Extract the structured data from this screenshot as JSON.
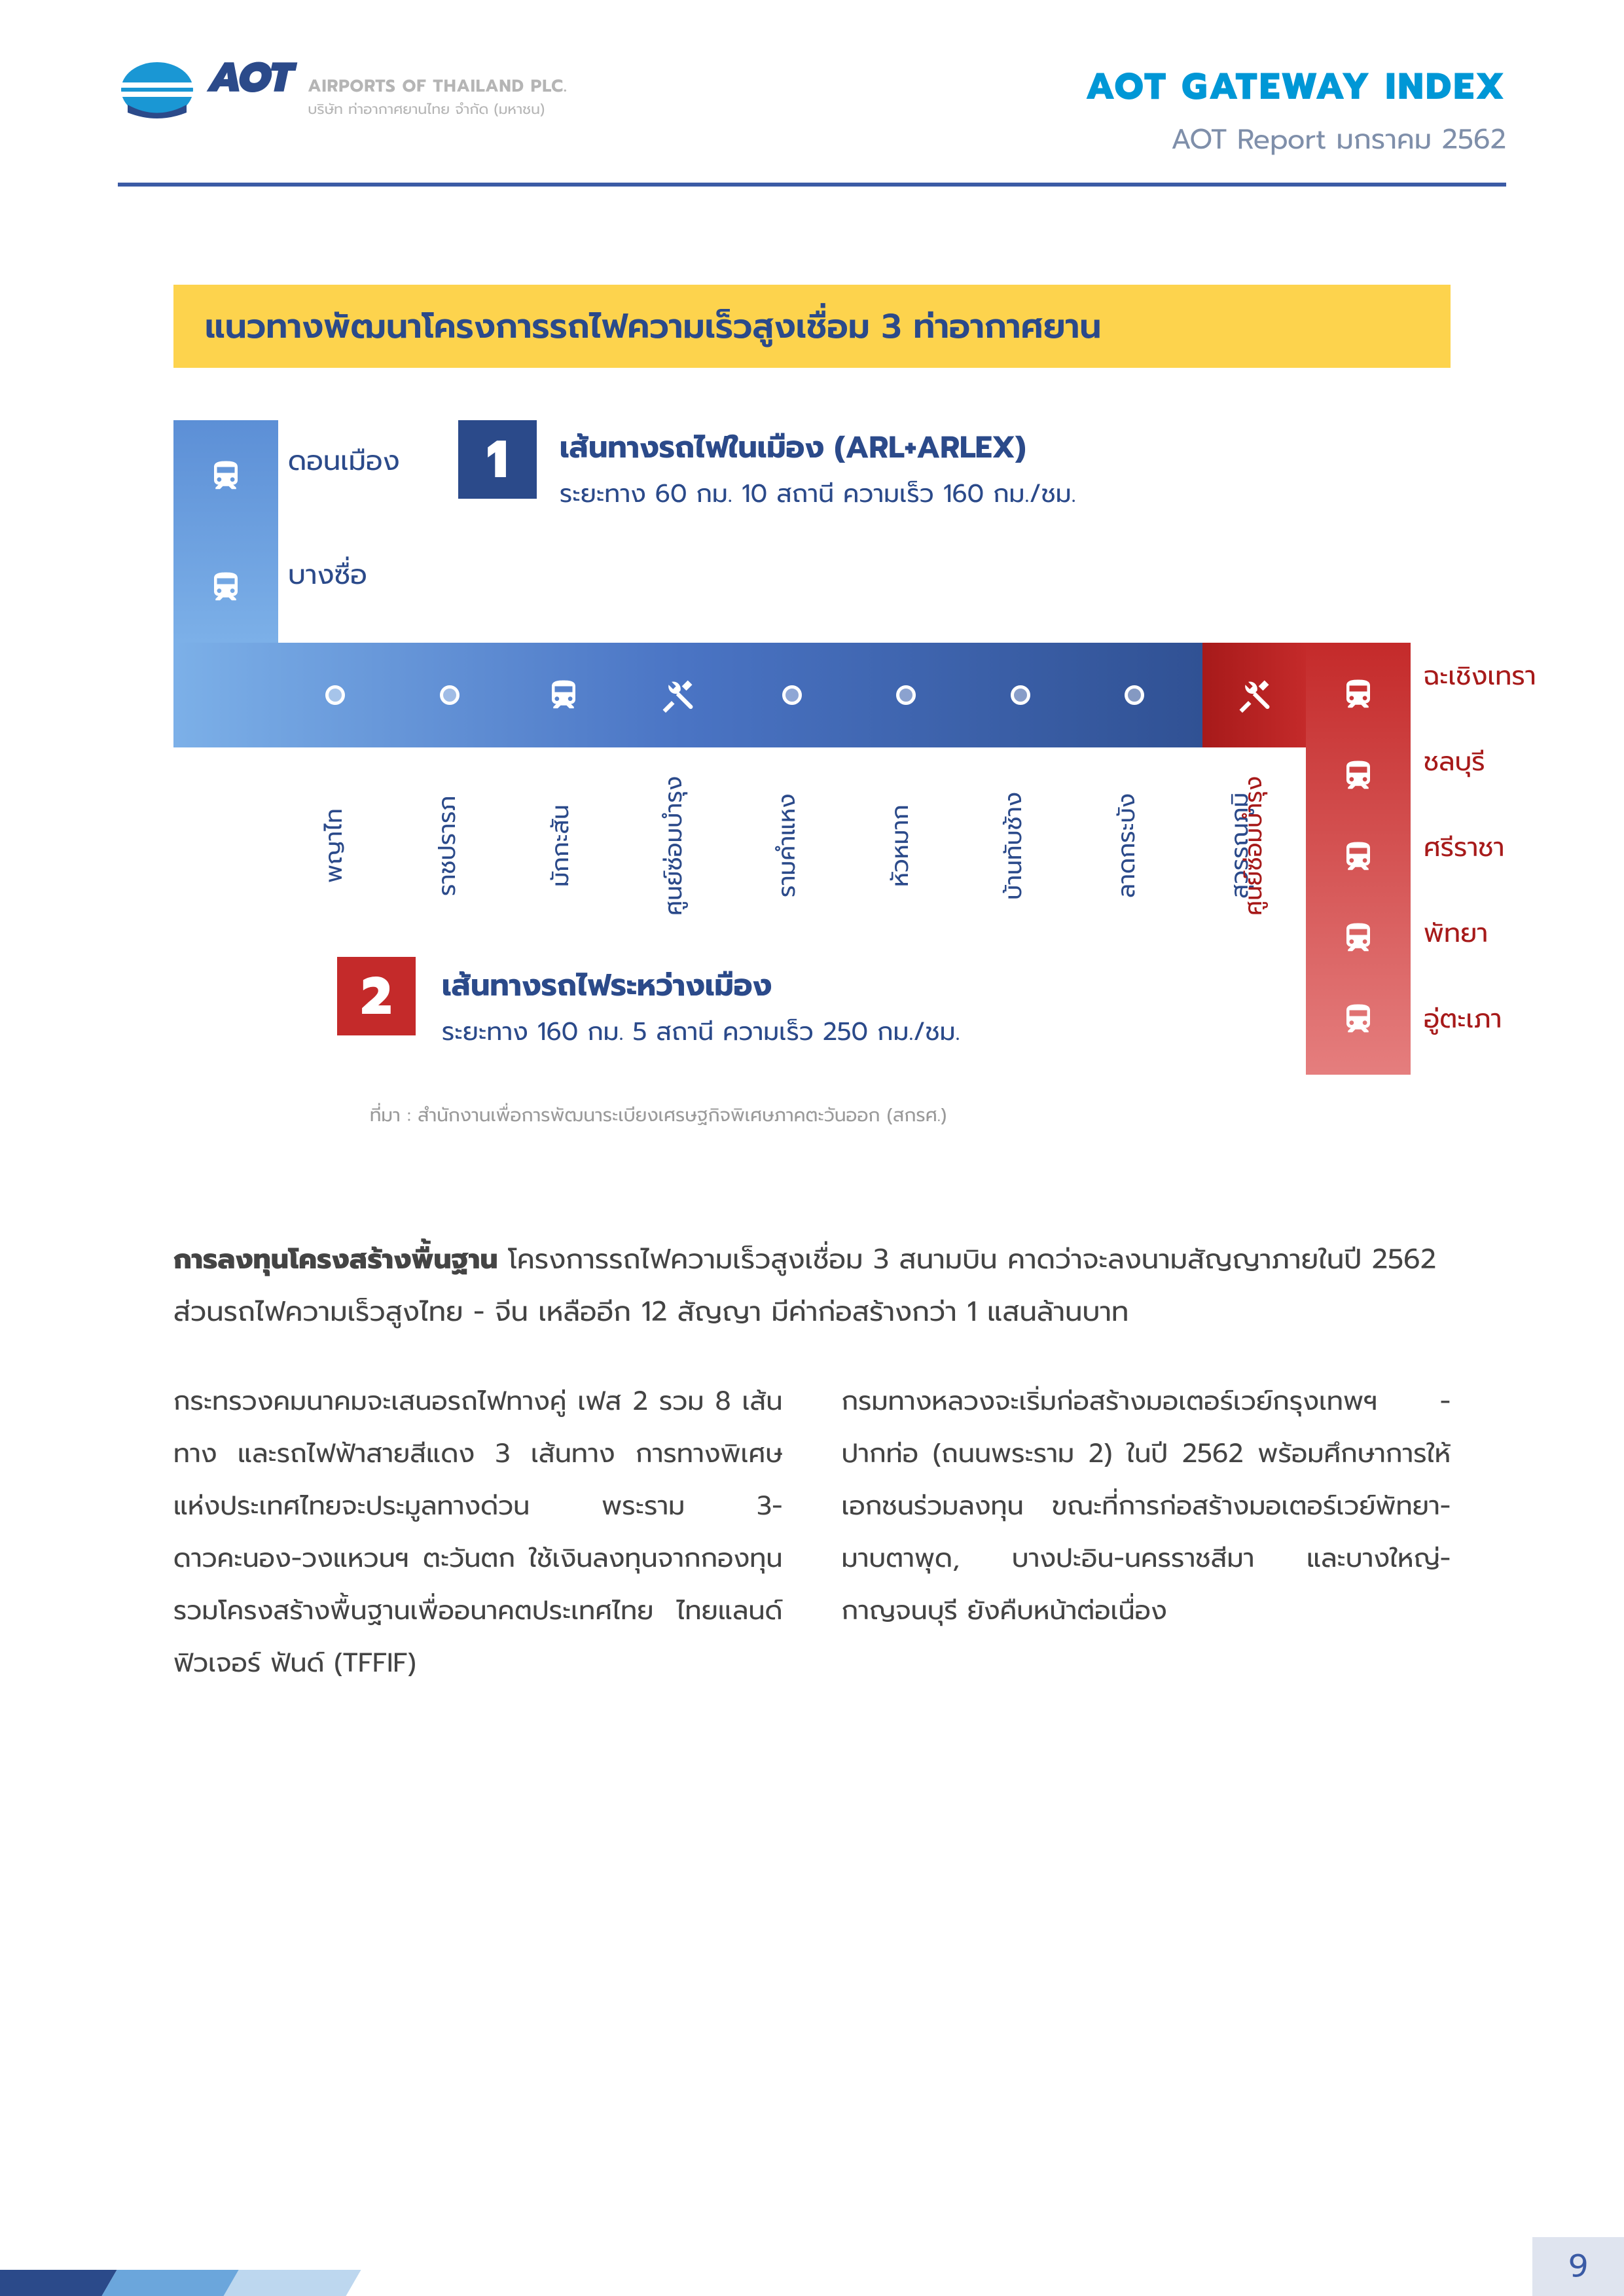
{
  "header": {
    "logo_text": "AOT",
    "sub_en": "AIRPORTS OF THAILAND PLC.",
    "sub_th": "บริษัท ท่าอากาศยานไทย จำกัด (มหาชน)",
    "title": "AOT GATEWAY INDEX",
    "subtitle": "AOT Report  มกราคม 2562"
  },
  "title_bar": "แนวทางพัฒนาโครงการรถไฟความเร็วสูงเชื่อม 3 ท่าอากาศยาน",
  "diagram": {
    "blue_top_stations": [
      "ดอนเมือง",
      "บางซื่อ"
    ],
    "box1": {
      "number": "1",
      "title": "เส้นทางรถไฟในเมือง (ARL+ARLEX)",
      "desc": "ระยะทาง 60 กม. 10 สถานี ความเร็ว 160 กม./ชม."
    },
    "hbar_cells": [
      {
        "type": "dot"
      },
      {
        "type": "dot"
      },
      {
        "type": "train"
      },
      {
        "type": "tools"
      },
      {
        "type": "dot"
      },
      {
        "type": "dot"
      },
      {
        "type": "dot"
      },
      {
        "type": "dot"
      },
      {
        "type": "train"
      }
    ],
    "blue_stations": [
      "พญาไท",
      "ราชปรารภ",
      "มักกะสัน",
      "ศูนย์ซ่อมบำรุง",
      "รามคำแหง",
      "หัวหมาก",
      "บ้านทับช้าง",
      "ลาดกระบัง",
      "สุวรรณภูมิ"
    ],
    "red_corner_label": "ศูนย์ซ่อมบำรุง",
    "red_stations": [
      "ฉะเชิงเทรา",
      "ชลบุรี",
      "ศรีราชา",
      "พัทยา",
      "อู่ตะเภา"
    ],
    "box2": {
      "number": "2",
      "title": "เส้นทางรถไฟระหว่างเมือง",
      "desc": "ระยะทาง 160 กม. 5 สถานี ความเร็ว 250 กม./ชม."
    },
    "source": "ที่มา : สำนักงานเพื่อการพัฒนาระเบียงเศรษฐกิจพิเศษภาคตะวันออก (สกรศ.)"
  },
  "body": {
    "intro_bold": "การลงทุนโครงสร้างพื้นฐาน",
    "intro_rest": " โครงการรถไฟความเร็วสูงเชื่อม 3 สนามบิน คาดว่าจะลงนามสัญญาภายในปี 2562 ส่วนรถไฟความเร็วสูงไทย - จีน เหลืออีก 12 สัญญา มีค่าก่อสร้างกว่า 1 แสนล้านบาท",
    "col1": "กระทรวงคมนาคมจะเสนอรถไฟทางคู่ เฟส 2 รวม 8 เส้นทาง และรถไฟฟ้าสายสีแดง 3 เส้นทาง การทางพิเศษแห่งประเทศไทยจะประมูลทางด่วน พระราม 3-ดาวคะนอง-วงแหวนฯ ตะวันตก ใช้เงินลงทุนจากกองทุนรวมโครงสร้างพื้นฐานเพื่ออนาคตประเทศไทย ไทยแลนด์ ฟิวเจอร์ ฟันด์ (TFFIF)",
    "col2": "กรมทางหลวงจะเริ่มก่อสร้างมอเตอร์เวย์กรุงเทพฯ - ปากท่อ (ถนนพระราม 2) ในปี 2562 พร้อมศึกษาการให้เอกชนร่วมลงทุน ขณะที่การก่อสร้างมอเตอร์เวย์พัทยา-มาบตาพุด, บางปะอิน-นครราชสีมา และบางใหญ่-กาญจนบุรี ยังคืบหน้าต่อเนื่อง"
  },
  "page_number": "9",
  "colors": {
    "brand_blue": "#2b4a8a",
    "accent_cyan": "#0097d6",
    "yellow": "#fdd34d",
    "red": "#c42a2a"
  }
}
